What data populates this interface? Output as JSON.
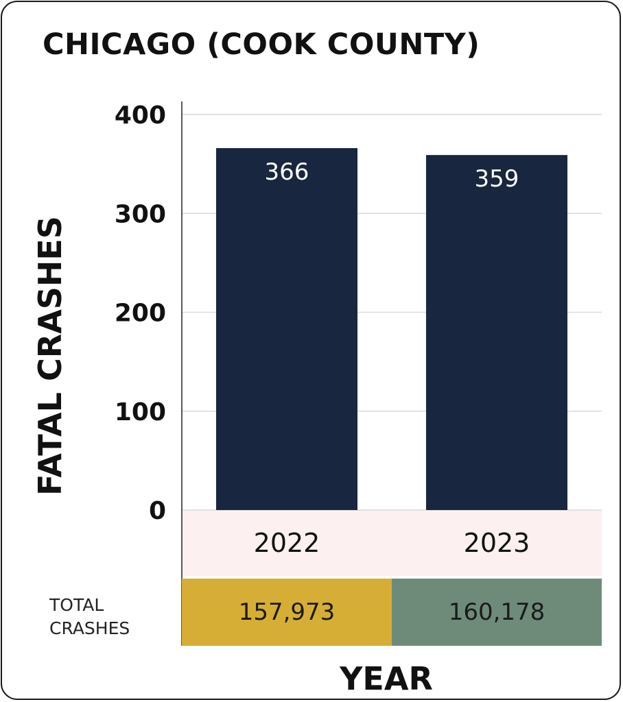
{
  "chart_data": {
    "type": "bar",
    "title": "CHICAGO (COOK COUNTY)",
    "ylabel": "FATAL CRASHES",
    "xlabel": "YEAR",
    "categories": [
      "2022",
      "2023"
    ],
    "values": [
      366,
      359
    ],
    "ylim": [
      0,
      400
    ],
    "yticks": [
      0,
      100,
      200,
      300,
      400
    ],
    "grid": true,
    "bar_color": "#18263f",
    "totals": {
      "label_line1": "TOTAL",
      "label_line2": "CRASHES",
      "values": [
        "157,973",
        "160,178"
      ],
      "colors": [
        "#d6ae36",
        "#6e8b7a"
      ]
    },
    "category_band_color": "#fcf0f0"
  }
}
